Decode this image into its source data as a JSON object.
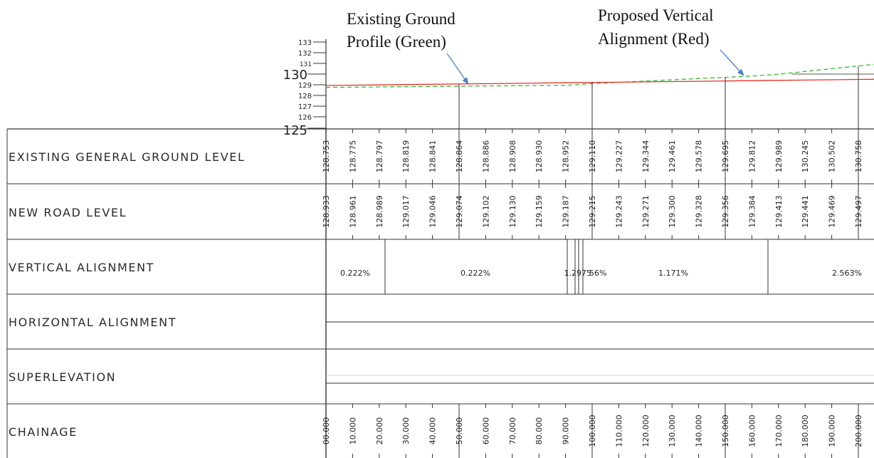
{
  "callouts": {
    "existing_line1": "Existing Ground",
    "existing_line2": "Profile (Green)",
    "proposed_line1": "Proposed Vertical",
    "proposed_line2": "Alignment (Red)"
  },
  "y_axis": {
    "major": [
      "130",
      "125"
    ],
    "minor": [
      "133",
      "132",
      "131",
      "129",
      "128",
      "127",
      "126"
    ]
  },
  "rows": {
    "existing_ground": "EXISTING GENERAL GROUND LEVEL",
    "new_road": "NEW ROAD LEVEL",
    "vertical": "VERTICAL ALIGNMENT",
    "horizontal": "HORIZONTAL ALIGNMENT",
    "superelevation": "SUPERLEVATION",
    "chainage": "CHAINAGE"
  },
  "chainage": [
    "00.000",
    "10.000",
    "20.000",
    "30.000",
    "40.000",
    "50.000",
    "60.000",
    "70.000",
    "80.000",
    "90.000",
    "100.000",
    "110.000",
    "120.000",
    "130.000",
    "140.000",
    "150.000",
    "160.000",
    "170.000",
    "180.000",
    "190.000",
    "200.000"
  ],
  "existing_ground_levels": [
    "128.753",
    "128.775",
    "128.797",
    "128.819",
    "128.841",
    "128.864",
    "128.886",
    "128.908",
    "128.930",
    "128.952",
    "129.110",
    "129.227",
    "129.344",
    "129.461",
    "129.578",
    "129.695",
    "129.812",
    "129.989",
    "130.245",
    "130.502",
    "130.758"
  ],
  "new_road_levels": [
    "128.933",
    "128.961",
    "128.989",
    "129.017",
    "129.046",
    "129.074",
    "129.102",
    "129.130",
    "129.159",
    "129.187",
    "129.215",
    "129.243",
    "129.271",
    "129.300",
    "129.328",
    "129.356",
    "129.384",
    "129.413",
    "129.441",
    "129.469",
    "129.497"
  ],
  "vertical_alignment": {
    "segments": [
      {
        "label": "0.222%"
      },
      {
        "label": "0.222%"
      },
      {
        "label": "1.2"
      },
      {
        "label": "975"
      },
      {
        "label": "56%"
      },
      {
        "label": "1.171%"
      },
      {
        "label": "2.563%"
      }
    ]
  },
  "colors": {
    "existing_ground": "#33bb33",
    "proposed_alignment": "#e8302a",
    "callout_arrow": "#4f81bd",
    "grid": "#333333"
  }
}
